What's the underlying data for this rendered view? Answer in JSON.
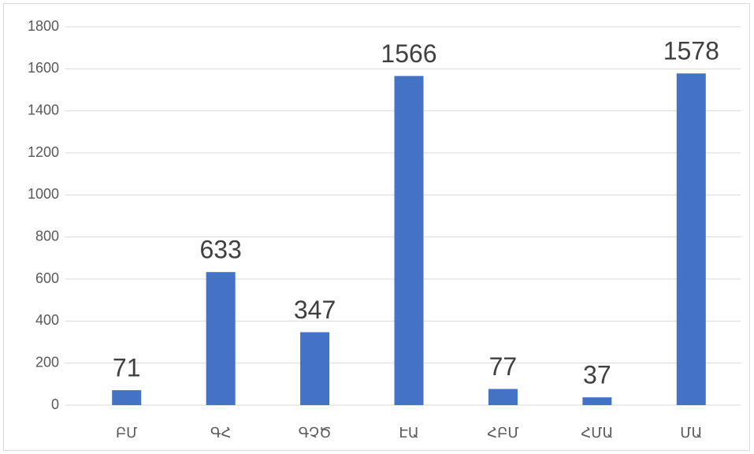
{
  "chart_data": {
    "type": "bar",
    "categories": [
      "ԲՄ",
      "ԳՀ",
      "ԳՉԾ",
      "ԷԱ",
      "ՀԲՄ",
      "ՀՄԱ",
      "ՄԱ"
    ],
    "values": [
      71,
      633,
      347,
      1566,
      77,
      37,
      1578
    ],
    "color": "#4472c4",
    "ylim": [
      0,
      1800
    ],
    "yticks": [
      0,
      200,
      400,
      600,
      800,
      1000,
      1200,
      1400,
      1600,
      1800
    ],
    "grid": true
  }
}
